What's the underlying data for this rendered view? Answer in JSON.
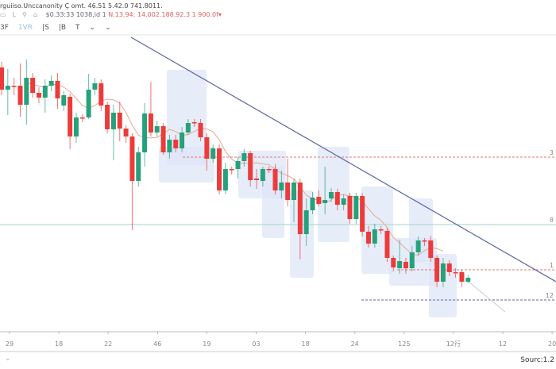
{
  "header": {
    "line1": "rguiiso.Unccanonity Ç omt. 46.51 5.42.0 741.8011.",
    "icons": [
      "chart-icon",
      "share-icon",
      "alert-icon",
      "indicator-icon"
    ],
    "price_text": "$0.33:33 1038,id 1",
    "change_text": "N.13.94: 14.002.188.92.3 1 900.0f▾"
  },
  "toolbar": {
    "items": [
      "3F",
      "1VR",
      "|S",
      "|B",
      "T",
      "⌄",
      "⌄"
    ],
    "active": "1VR"
  },
  "footer": {
    "source": "Sourc:1.2",
    "chevron": "⌄"
  },
  "colors": {
    "up": "#26a17b",
    "down": "#ec3b3b",
    "trendline": "#5a63a8",
    "ma": "#e8a890",
    "cloud": "#dfe6f7"
  },
  "chart_data": {
    "type": "candlestick",
    "x_tick_labels": [
      "29",
      "18",
      "22",
      "46",
      "19",
      "03",
      "18",
      "24",
      "125",
      "12行",
      "12",
      "20"
    ],
    "y_ticks_visible": false,
    "ylim": [
      30,
      450
    ],
    "candles": [
      [
        365,
        337,
        372,
        330
      ],
      [
        337,
        342,
        363,
        305
      ],
      [
        342,
        341,
        352,
        330
      ],
      [
        342,
        318,
        370,
        303
      ],
      [
        318,
        352,
        375,
        293
      ],
      [
        352,
        333,
        358,
        327
      ],
      [
        333,
        327,
        340,
        320
      ],
      [
        327,
        342,
        350,
        308
      ],
      [
        342,
        348,
        355,
        335
      ],
      [
        348,
        326,
        358,
        313
      ],
      [
        317,
        330,
        335,
        310
      ],
      [
        328,
        278,
        332,
        262
      ],
      [
        278,
        302,
        308,
        270
      ],
      [
        302,
        301,
        306,
        296
      ],
      [
        302,
        337,
        357,
        300
      ],
      [
        337,
        345,
        352,
        330
      ],
      [
        345,
        317,
        350,
        310
      ],
      [
        318,
        287,
        322,
        282
      ],
      [
        287,
        308,
        318,
        248
      ],
      [
        308,
        288,
        322,
        272
      ],
      [
        288,
        278,
        292,
        270
      ],
      [
        278,
        222,
        282,
        160
      ],
      [
        222,
        258,
        265,
        215
      ],
      [
        258,
        307,
        320,
        240
      ],
      [
        307,
        283,
        347,
        278
      ],
      [
        283,
        291,
        298,
        278
      ],
      [
        291,
        258,
        295,
        255
      ],
      [
        258,
        274,
        280,
        250
      ],
      [
        274,
        263,
        280,
        258
      ],
      [
        263,
        283,
        290,
        258
      ],
      [
        283,
        295,
        300,
        280
      ],
      [
        296,
        295,
        300,
        290
      ],
      [
        295,
        277,
        300,
        272
      ],
      [
        277,
        250,
        282,
        235
      ],
      [
        250,
        263,
        268,
        245
      ],
      [
        263,
        210,
        268,
        205
      ],
      [
        210,
        237,
        245,
        205
      ],
      [
        237,
        236,
        240,
        230
      ],
      [
        237,
        247,
        252,
        225
      ],
      [
        247,
        257,
        262,
        240
      ],
      [
        257,
        223,
        260,
        215
      ],
      [
        225,
        223,
        237,
        212
      ],
      [
        222,
        237,
        240,
        215
      ],
      [
        237,
        236,
        240,
        232
      ],
      [
        237,
        210,
        243,
        205
      ],
      [
        210,
        220,
        235,
        200
      ],
      [
        220,
        198,
        250,
        190
      ],
      [
        198,
        220,
        225,
        170
      ],
      [
        220,
        155,
        225,
        123
      ],
      [
        155,
        185,
        200,
        140
      ],
      [
        185,
        201,
        208,
        180
      ],
      [
        202,
        193,
        210,
        190
      ],
      [
        194,
        198,
        240,
        180
      ],
      [
        200,
        208,
        213,
        195
      ],
      [
        208,
        192,
        212,
        185
      ],
      [
        192,
        200,
        205,
        185
      ],
      [
        203,
        174,
        207,
        168
      ],
      [
        174,
        203,
        207,
        168
      ],
      [
        203,
        158,
        207,
        152
      ],
      [
        158,
        143,
        165,
        138
      ],
      [
        143,
        161,
        168,
        138
      ],
      [
        161,
        160,
        165,
        155
      ],
      [
        159,
        125,
        163,
        120
      ],
      [
        125,
        113,
        128,
        108
      ],
      [
        112,
        121,
        148,
        105
      ],
      [
        120,
        112,
        125,
        105
      ],
      [
        112,
        132,
        140,
        108
      ],
      [
        132,
        147,
        152,
        128
      ],
      [
        147,
        146,
        150,
        140
      ],
      [
        147,
        125,
        153,
        120
      ],
      [
        125,
        95,
        128,
        88
      ],
      [
        95,
        118,
        125,
        88
      ],
      [
        118,
        107,
        122,
        102
      ],
      [
        107,
        106,
        112,
        100
      ],
      [
        107,
        95,
        110,
        88
      ],
      [
        95,
        100,
        103,
        93
      ]
    ],
    "horizontal_levels": [
      {
        "label": "3",
        "value": 252,
        "style": "dashed",
        "color": "#e07a6a"
      },
      {
        "label": "8",
        "value": 167,
        "style": "solid",
        "color": "#9fd6c8"
      },
      {
        "label": "1",
        "value": 110,
        "style": "dashed",
        "color": "#e07a6a"
      },
      {
        "label": "12",
        "value": 72,
        "style": "dashed",
        "color": "#5a63a8"
      }
    ],
    "trendline": [
      [
        403,
        450
      ],
      [
        95,
        700
      ]
    ]
  }
}
